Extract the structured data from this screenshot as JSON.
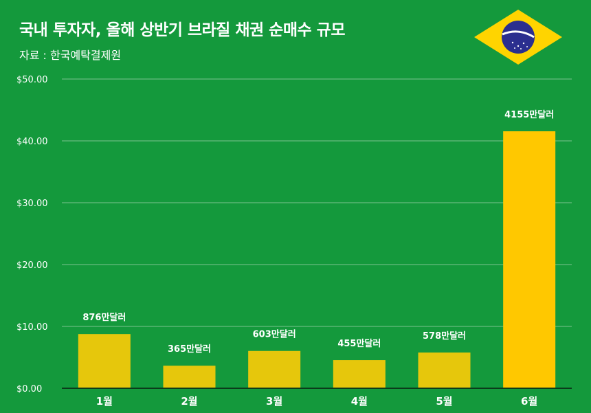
{
  "header": {
    "title": "국내 투자자, 올해 상반기 브라질 채권 순매수 규모",
    "source": "자료 : 한국예탁결제원"
  },
  "colors": {
    "background": "#14993c",
    "bar": "#e6c70c",
    "bar_highlight": "#ffc800",
    "gridline": "#7cc48f",
    "flag_green": "#14993c",
    "flag_yellow": "#ffd400",
    "flag_blue": "#2b2f8f"
  },
  "flag_icon": "brazil-flag-icon",
  "chart_data": {
    "type": "bar",
    "title": "국내 투자자, 올해 상반기 브라질 채권 순매수 규모",
    "subtitle": "자료 : 한국예탁결제원",
    "xlabel": "",
    "ylabel": "",
    "categories": [
      "1월",
      "2월",
      "3월",
      "4월",
      "5월",
      "6월"
    ],
    "values": [
      8.76,
      3.65,
      6.03,
      4.55,
      5.78,
      41.55
    ],
    "data_labels": [
      "876만달러",
      "365만달러",
      "603만달러",
      "455만달러",
      "578만달러",
      "4155만달러"
    ],
    "highlight_index": 5,
    "ylim": [
      0,
      50
    ],
    "yticks": [
      0,
      10,
      20,
      30,
      40,
      50
    ],
    "ytick_labels": [
      "$0.00",
      "$10.00",
      "$20.00",
      "$30.00",
      "$40.00",
      "$50.00"
    ],
    "grid": true,
    "legend": "none"
  }
}
